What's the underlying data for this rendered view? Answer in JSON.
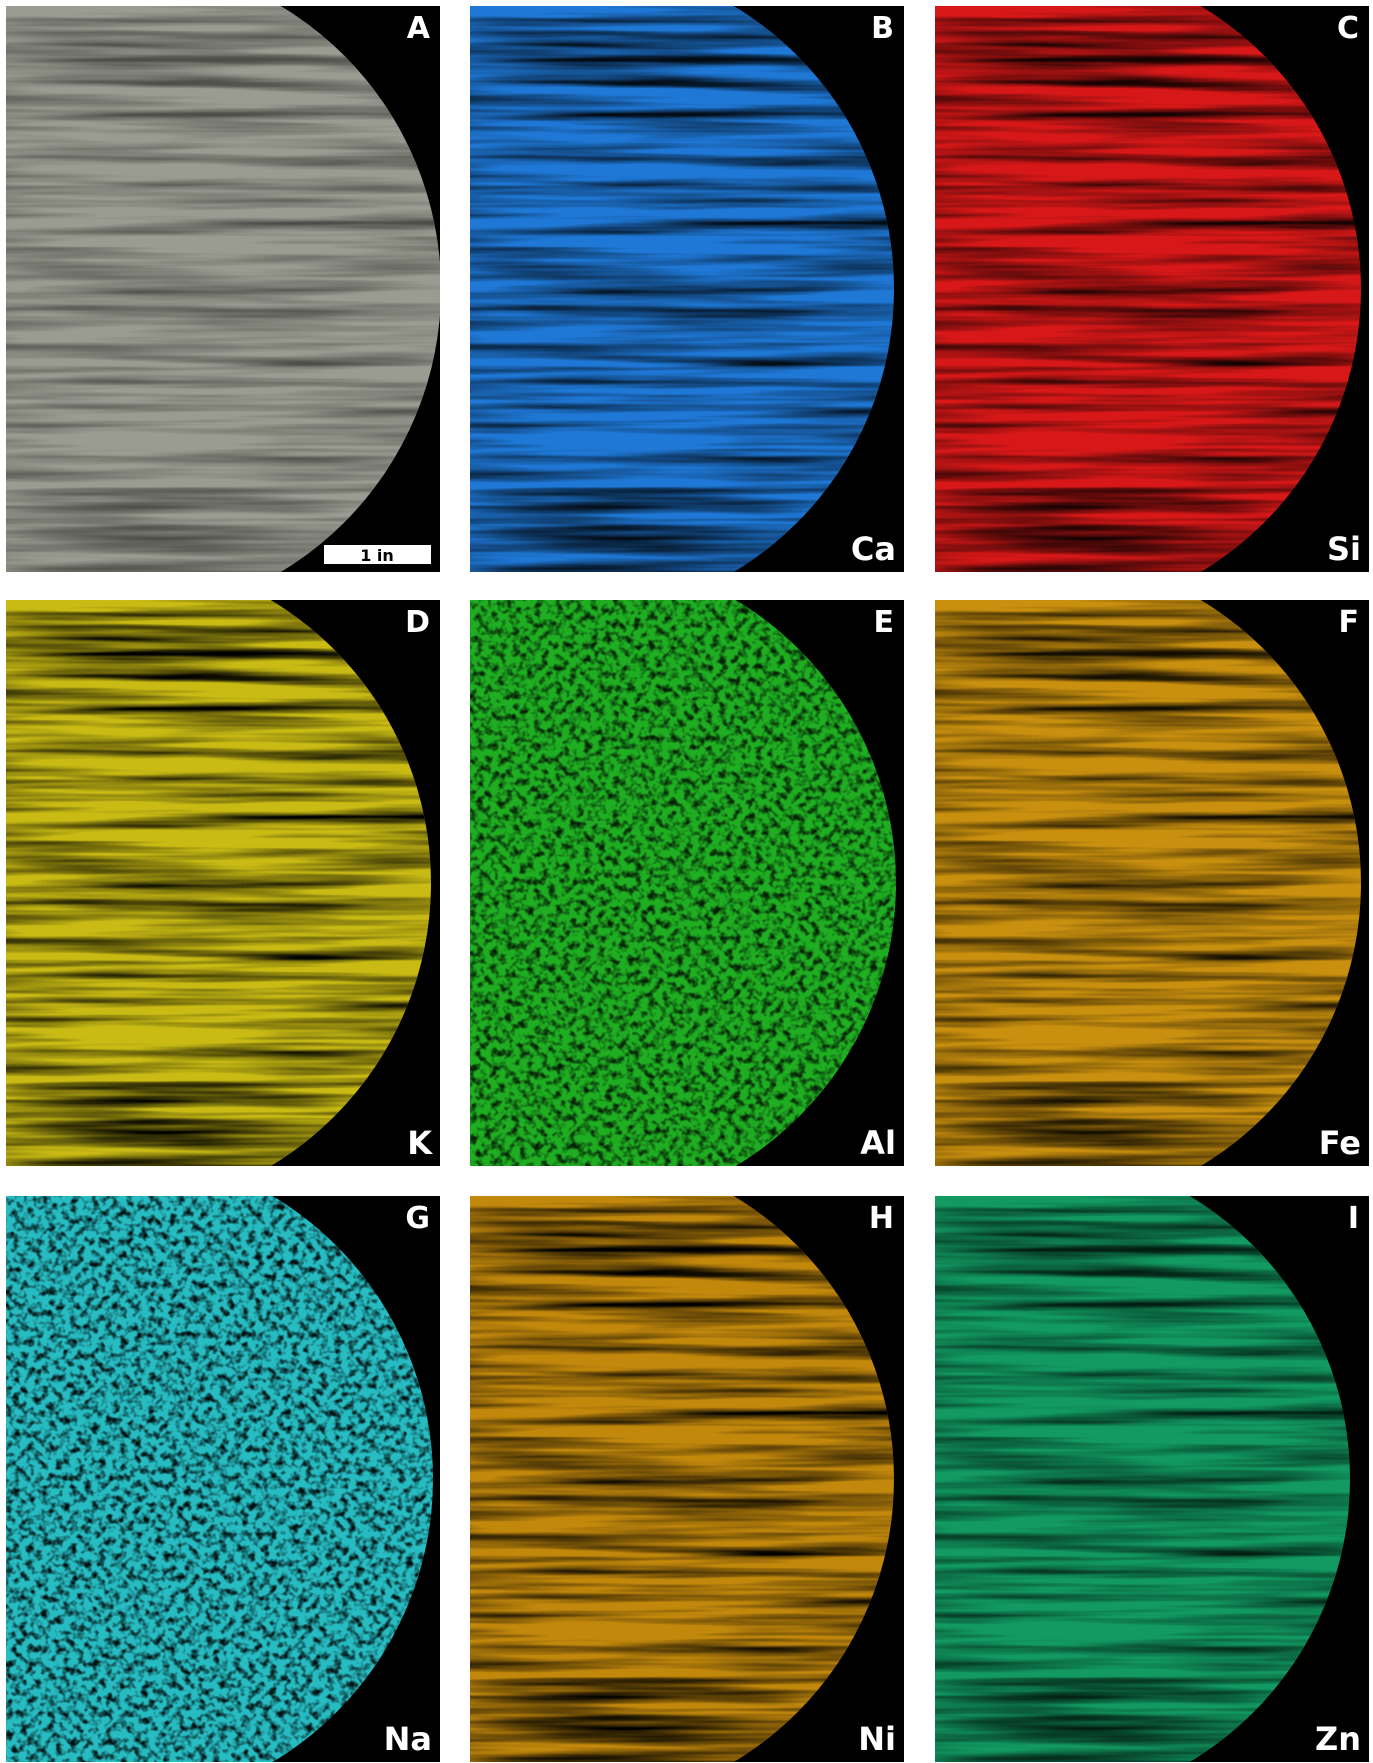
{
  "panels": [
    {
      "letter": "A",
      "scale_bar": "1 in"
    },
    {
      "letter": "B",
      "element": "Ca"
    },
    {
      "letter": "C",
      "element": "Si"
    },
    {
      "letter": "D",
      "element": "K"
    },
    {
      "letter": "E",
      "element": "Al"
    },
    {
      "letter": "F",
      "element": "Fe"
    },
    {
      "letter": "G",
      "element": "Na"
    },
    {
      "letter": "H",
      "element": "Ni"
    },
    {
      "letter": "I",
      "element": "Zn"
    }
  ]
}
